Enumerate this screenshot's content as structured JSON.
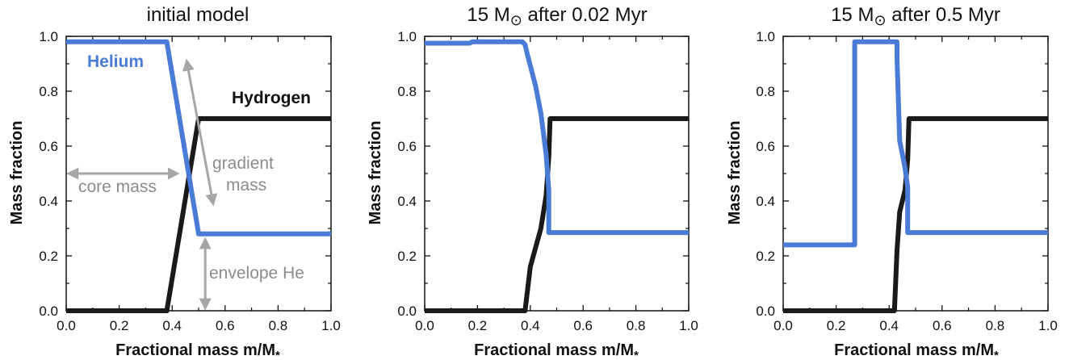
{
  "chart_data": [
    {
      "type": "line",
      "title": "initial model",
      "xlabel": "Fractional mass m/M",
      "xlabel_sub": "*",
      "ylabel": "Mass fraction",
      "xlim": [
        0,
        1
      ],
      "ylim": [
        0,
        1
      ],
      "xticks": [
        "0.0",
        "0.2",
        "0.4",
        "0.6",
        "0.8",
        "1.0"
      ],
      "yticks": [
        "0.0",
        "0.2",
        "0.4",
        "0.6",
        "0.8",
        "1.0"
      ],
      "series": [
        {
          "name": "Helium",
          "color": "#4a7bd6",
          "x": [
            0.0,
            0.38,
            0.5,
            1.0
          ],
          "y": [
            0.98,
            0.98,
            0.28,
            0.28
          ]
        },
        {
          "name": "Hydrogen",
          "color": "#1a1a1a",
          "x": [
            0.0,
            0.38,
            0.5,
            1.0
          ],
          "y": [
            0.0,
            0.0,
            0.7,
            0.7
          ]
        }
      ],
      "annotations": {
        "core_mass": "core mass",
        "gradient_line1": "gradient",
        "gradient_line2": "mass",
        "envelope_he": "envelope He"
      }
    },
    {
      "type": "line",
      "title_prefix": "15 M",
      "title_symbol": "⊙",
      "title_suffix": " after 0.02 Myr",
      "xlabel": "Fractional mass m/M",
      "xlabel_sub": "*",
      "ylabel": "Mass fraction",
      "xlim": [
        0,
        1
      ],
      "ylim": [
        0,
        1
      ],
      "xticks": [
        "0.0",
        "0.2",
        "0.4",
        "0.6",
        "0.8",
        "1.0"
      ],
      "yticks": [
        "0.0",
        "0.2",
        "0.4",
        "0.6",
        "0.8",
        "1.0"
      ],
      "series": [
        {
          "name": "",
          "color": "#4a7bd6",
          "x": [
            0.0,
            0.17,
            0.18,
            0.37,
            0.38,
            0.39,
            0.42,
            0.44,
            0.46,
            0.47,
            0.47,
            1.0
          ],
          "y": [
            0.975,
            0.975,
            0.98,
            0.98,
            0.97,
            0.93,
            0.82,
            0.72,
            0.57,
            0.44,
            0.285,
            0.285
          ]
        },
        {
          "name": "",
          "color": "#1a1a1a",
          "x": [
            0.0,
            0.38,
            0.4,
            0.44,
            0.46,
            0.47,
            0.475,
            1.0
          ],
          "y": [
            0.0,
            0.0,
            0.16,
            0.3,
            0.42,
            0.56,
            0.7,
            0.7
          ]
        }
      ]
    },
    {
      "type": "line",
      "title_prefix": "15 M",
      "title_symbol": "⊙",
      "title_suffix": " after 0.5 Myr",
      "xlabel": "Fractional mass m/M",
      "xlabel_sub": "*",
      "ylabel": "Mass fraction",
      "xlim": [
        0,
        1
      ],
      "ylim": [
        0,
        1
      ],
      "xticks": [
        "0.0",
        "0.2",
        "0.4",
        "0.6",
        "0.8",
        "1.0"
      ],
      "yticks": [
        "0.0",
        "0.2",
        "0.4",
        "0.6",
        "0.8",
        "1.0"
      ],
      "series": [
        {
          "name": "",
          "color": "#4a7bd6",
          "x": [
            0.0,
            0.27,
            0.27,
            0.43,
            0.43,
            0.44,
            0.46,
            0.47,
            0.47,
            1.0
          ],
          "y": [
            0.24,
            0.24,
            0.98,
            0.98,
            0.92,
            0.62,
            0.52,
            0.45,
            0.285,
            0.285
          ]
        },
        {
          "name": "",
          "color": "#1a1a1a",
          "x": [
            0.0,
            0.42,
            0.43,
            0.44,
            0.46,
            0.47,
            0.475,
            1.0
          ],
          "y": [
            0.0,
            0.0,
            0.22,
            0.36,
            0.44,
            0.55,
            0.7,
            0.7
          ]
        }
      ]
    }
  ]
}
